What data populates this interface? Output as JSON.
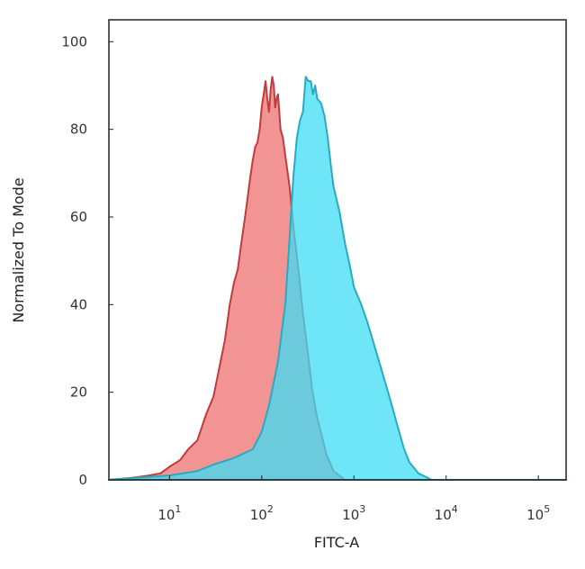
{
  "chart_data": {
    "type": "area",
    "title": "",
    "xlabel": "FITC-A",
    "ylabel": "Normalized To Mode",
    "x_scale": "log",
    "xlim": [
      2.2,
      200000
    ],
    "ylim": [
      0,
      105
    ],
    "x_ticks": [
      {
        "value": 10,
        "base": "10",
        "exp": "1"
      },
      {
        "value": 100,
        "base": "10",
        "exp": "2"
      },
      {
        "value": 1000,
        "base": "10",
        "exp": "3"
      },
      {
        "value": 10000,
        "base": "10",
        "exp": "4"
      },
      {
        "value": 100000,
        "base": "10",
        "exp": "5"
      }
    ],
    "y_ticks": [
      {
        "value": 0,
        "label": "0"
      },
      {
        "value": 20,
        "label": "20"
      },
      {
        "value": 40,
        "label": "40"
      },
      {
        "value": 60,
        "label": "60"
      },
      {
        "value": 80,
        "label": "80"
      },
      {
        "value": 100,
        "label": "100"
      }
    ],
    "grid": false,
    "legend": "none",
    "series": [
      {
        "color": "#f28e8e",
        "stroke": "#c23b3b",
        "points": [
          [
            2.2,
            0
          ],
          [
            4,
            0.5
          ],
          [
            6,
            1
          ],
          [
            8,
            1.5
          ],
          [
            10,
            3
          ],
          [
            13,
            4.5
          ],
          [
            16,
            7
          ],
          [
            20,
            9
          ],
          [
            25,
            15
          ],
          [
            30,
            19
          ],
          [
            35,
            26
          ],
          [
            40,
            32
          ],
          [
            45,
            40
          ],
          [
            50,
            45
          ],
          [
            55,
            48
          ],
          [
            60,
            54
          ],
          [
            65,
            59
          ],
          [
            70,
            64
          ],
          [
            75,
            69
          ],
          [
            80,
            73
          ],
          [
            85,
            76
          ],
          [
            90,
            77
          ],
          [
            95,
            80
          ],
          [
            100,
            85
          ],
          [
            105,
            88
          ],
          [
            110,
            91
          ],
          [
            115,
            87
          ],
          [
            120,
            84
          ],
          [
            125,
            89
          ],
          [
            130,
            92
          ],
          [
            135,
            90
          ],
          [
            140,
            85
          ],
          [
            145,
            87
          ],
          [
            150,
            88
          ],
          [
            160,
            80
          ],
          [
            170,
            78
          ],
          [
            180,
            74
          ],
          [
            200,
            67
          ],
          [
            220,
            58
          ],
          [
            250,
            48
          ],
          [
            280,
            38
          ],
          [
            320,
            28
          ],
          [
            350,
            21
          ],
          [
            400,
            14
          ],
          [
            450,
            10
          ],
          [
            500,
            6
          ],
          [
            600,
            2
          ],
          [
            800,
            0
          ],
          [
            200000,
            0
          ]
        ]
      },
      {
        "color": "#3fdcf5",
        "stroke": "#2aaabf",
        "points": [
          [
            2.2,
            0
          ],
          [
            10,
            1
          ],
          [
            20,
            2
          ],
          [
            30,
            3.5
          ],
          [
            50,
            5
          ],
          [
            80,
            7
          ],
          [
            100,
            11
          ],
          [
            120,
            17
          ],
          [
            150,
            27
          ],
          [
            180,
            40
          ],
          [
            200,
            55
          ],
          [
            220,
            69
          ],
          [
            240,
            78
          ],
          [
            260,
            82
          ],
          [
            280,
            84
          ],
          [
            300,
            92
          ],
          [
            320,
            91
          ],
          [
            340,
            91
          ],
          [
            360,
            88
          ],
          [
            380,
            90
          ],
          [
            400,
            87
          ],
          [
            440,
            86
          ],
          [
            480,
            83
          ],
          [
            520,
            78
          ],
          [
            560,
            72
          ],
          [
            600,
            67
          ],
          [
            700,
            61
          ],
          [
            800,
            54
          ],
          [
            900,
            49
          ],
          [
            1000,
            44
          ],
          [
            1200,
            40
          ],
          [
            1400,
            36
          ],
          [
            1700,
            30
          ],
          [
            2000,
            25
          ],
          [
            2500,
            18
          ],
          [
            3000,
            12
          ],
          [
            3500,
            7
          ],
          [
            4000,
            4
          ],
          [
            5000,
            1.5
          ],
          [
            7000,
            0
          ],
          [
            200000,
            0
          ]
        ]
      }
    ]
  }
}
